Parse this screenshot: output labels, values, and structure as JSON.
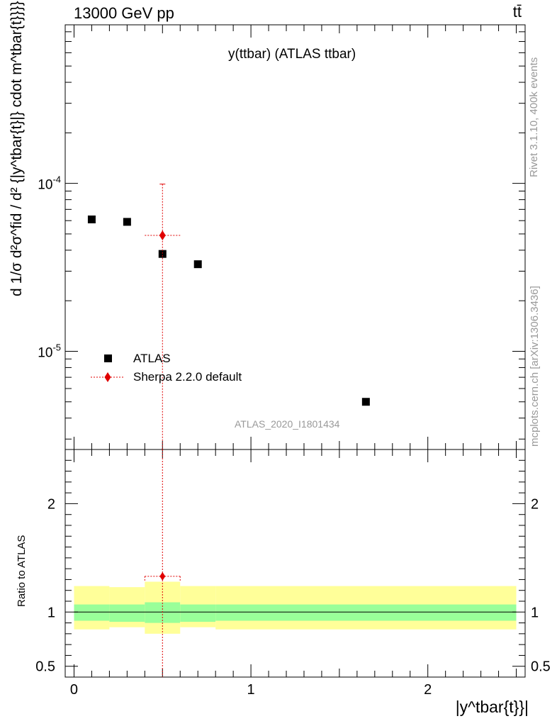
{
  "header": {
    "energy_label": "13000 GeV pp",
    "process_label": "tt̄"
  },
  "side_labels": {
    "rivet": "Rivet 3.1.10,  400k events",
    "mcplots": "mcplots.cern.ch [arXiv:1306.3436]"
  },
  "chart_data": [
    {
      "type": "scatter",
      "title": "y(ttbar) (ATLAS ttbar)",
      "analysis": "ATLAS_2020_I1801434",
      "ylabel": "d 1/σ d²σ^fid / d² {|y^tbar{t}|} cdot m^tbar{t}}}} [1/GeV]",
      "yscale": "log",
      "ylim": [
        2.6e-06,
        0.00088
      ],
      "ytick_labels": [
        "10^-5",
        "10^-4"
      ],
      "xlim": [
        -0.05,
        2.55
      ],
      "legend_placement": "bottom-left",
      "series": [
        {
          "name": "ATLAS",
          "marker": "square",
          "color": "#000000",
          "x": [
            0.1,
            0.3,
            0.5,
            0.7,
            1.65
          ],
          "y": [
            6.1e-05,
            5.9e-05,
            3.8e-05,
            3.3e-05,
            5e-06
          ]
        },
        {
          "name": "Sherpa 2.2.0 default",
          "marker": "diamond",
          "color": "#e00000",
          "x": [
            0.5
          ],
          "xerr": [
            0.1
          ],
          "y": [
            4.9e-05
          ],
          "yerr_low": [
            4.9e-05
          ],
          "yerr_high": [
            5e-05
          ]
        }
      ]
    },
    {
      "type": "ratio",
      "ylabel": "Ratio to ATLAS",
      "xlabel": "|y^tbar{t}}|",
      "ylim": [
        0.4,
        2.5
      ],
      "ytick_labels": [
        "0.5",
        "1",
        "2"
      ],
      "xtick_labels": [
        "0",
        "1",
        "2"
      ],
      "xlim": [
        -0.05,
        2.55
      ],
      "bins": [
        {
          "lo": 0.0,
          "hi": 0.2,
          "inner": [
            0.92,
            1.07
          ],
          "outer": [
            0.84,
            1.24
          ]
        },
        {
          "lo": 0.2,
          "hi": 0.4,
          "inner": [
            0.91,
            1.07
          ],
          "outer": [
            0.86,
            1.23
          ]
        },
        {
          "lo": 0.4,
          "hi": 0.6,
          "inner": [
            0.9,
            1.09
          ],
          "outer": [
            0.8,
            1.28
          ]
        },
        {
          "lo": 0.6,
          "hi": 0.8,
          "inner": [
            0.91,
            1.07
          ],
          "outer": [
            0.86,
            1.24
          ]
        },
        {
          "lo": 0.8,
          "hi": 2.5,
          "inner": [
            0.92,
            1.07
          ],
          "outer": [
            0.84,
            1.24
          ]
        }
      ],
      "series": [
        {
          "name": "Sherpa 2.2.0 default",
          "x": [
            0.5
          ],
          "xerr": [
            0.1
          ],
          "y": [
            1.33
          ],
          "yerr_low": [
            0.93
          ],
          "yerr_high": [
            1.17
          ]
        }
      ],
      "band_colors": {
        "inner": "#99ff99",
        "outer": "#ffff99"
      }
    }
  ]
}
